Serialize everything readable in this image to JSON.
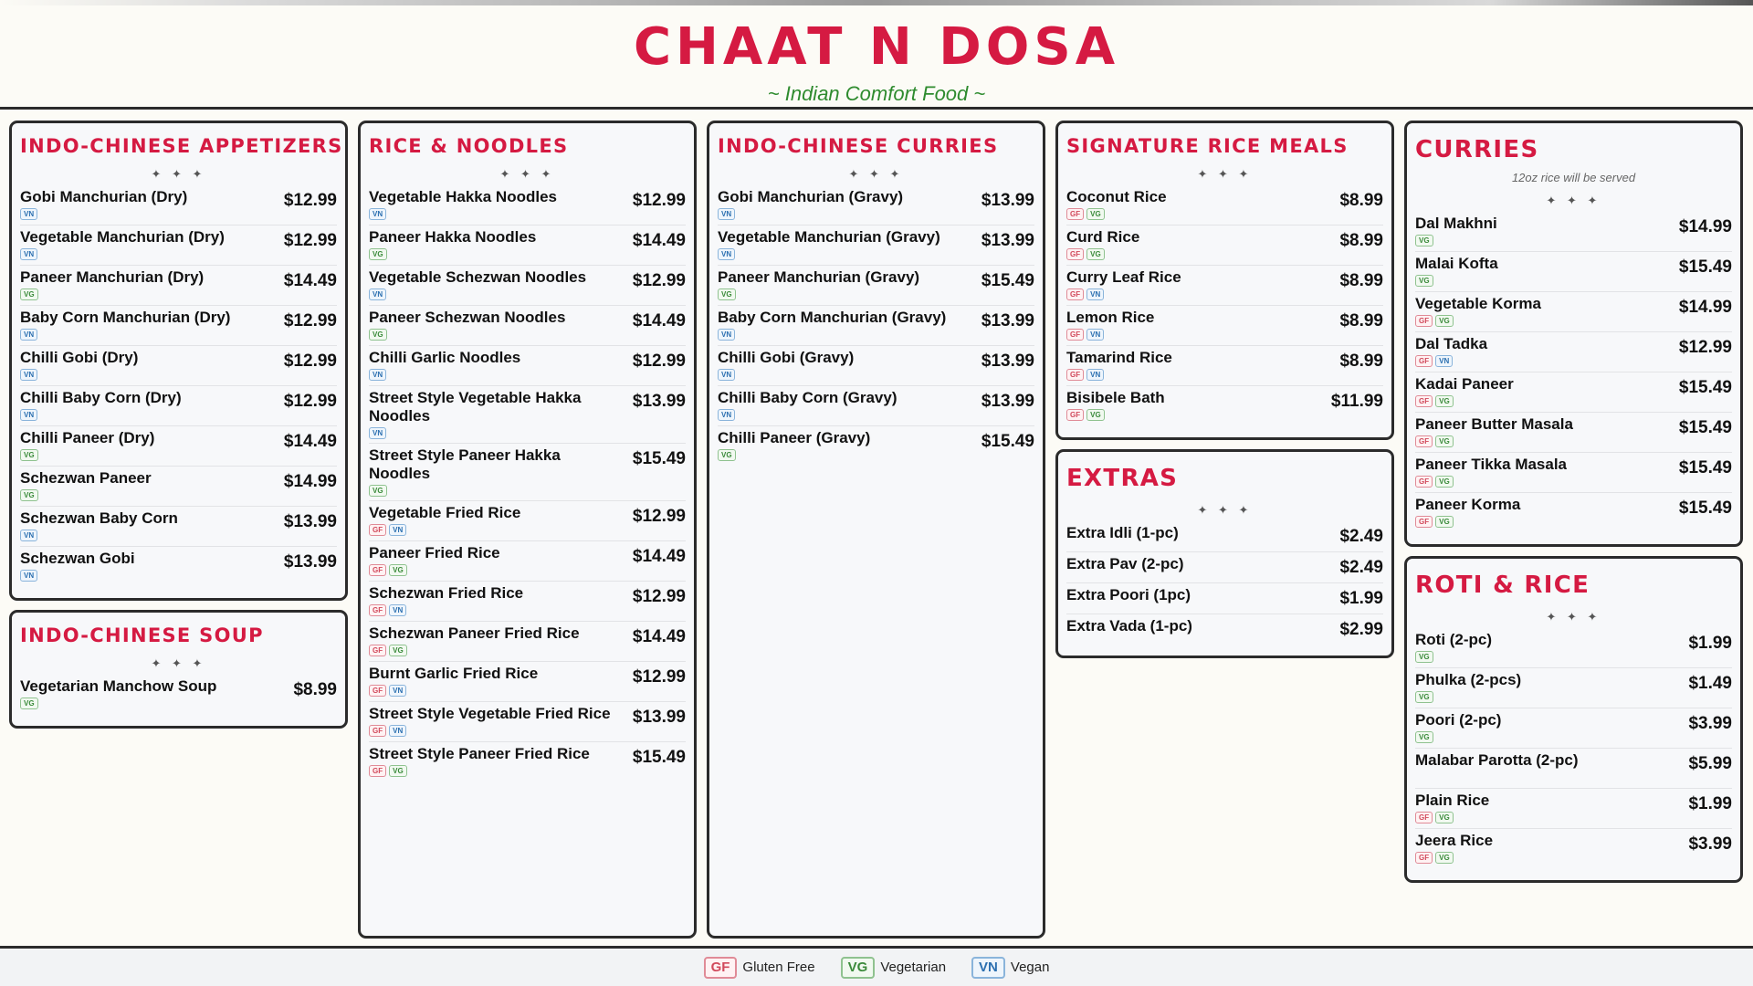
{
  "header": {
    "title": "CHAAT N DOSA",
    "subtitle": "~ Indian Comfort Food ~"
  },
  "stars": "✦ ✦ ✦",
  "sections": {
    "appetizers": {
      "title": "INDO-CHINESE APPETIZERS",
      "items": [
        {
          "name": "Gobi Manchurian (Dry)",
          "price": "$12.99",
          "tags": [
            "VN"
          ]
        },
        {
          "name": "Vegetable Manchurian (Dry)",
          "price": "$12.99",
          "tags": [
            "VN"
          ]
        },
        {
          "name": "Paneer Manchurian (Dry)",
          "price": "$14.49",
          "tags": [
            "VG"
          ]
        },
        {
          "name": "Baby Corn Manchurian (Dry)",
          "price": "$12.99",
          "tags": [
            "VN"
          ]
        },
        {
          "name": "Chilli Gobi (Dry)",
          "price": "$12.99",
          "tags": [
            "VN"
          ]
        },
        {
          "name": "Chilli Baby Corn (Dry)",
          "price": "$12.99",
          "tags": [
            "VN"
          ]
        },
        {
          "name": "Chilli Paneer (Dry)",
          "price": "$14.49",
          "tags": [
            "VG"
          ]
        },
        {
          "name": "Schezwan Paneer",
          "price": "$14.99",
          "tags": [
            "VG"
          ]
        },
        {
          "name": "Schezwan Baby Corn",
          "price": "$13.99",
          "tags": [
            "VN"
          ]
        },
        {
          "name": "Schezwan Gobi",
          "price": "$13.99",
          "tags": [
            "VN"
          ]
        }
      ]
    },
    "soup": {
      "title": "INDO-CHINESE SOUP",
      "items": [
        {
          "name": "Vegetarian Manchow Soup",
          "price": "$8.99",
          "tags": [
            "VG"
          ]
        }
      ]
    },
    "noodles": {
      "title": "RICE & NOODLES",
      "items": [
        {
          "name": "Vegetable Hakka Noodles",
          "price": "$12.99",
          "tags": [
            "VN"
          ]
        },
        {
          "name": "Paneer Hakka Noodles",
          "price": "$14.49",
          "tags": [
            "VG"
          ]
        },
        {
          "name": "Vegetable Schezwan Noodles",
          "price": "$12.99",
          "tags": [
            "VN"
          ]
        },
        {
          "name": "Paneer Schezwan Noodles",
          "price": "$14.49",
          "tags": [
            "VG"
          ]
        },
        {
          "name": "Chilli Garlic Noodles",
          "price": "$12.99",
          "tags": [
            "VN"
          ]
        },
        {
          "name": "Street Style Vegetable Hakka Noodles",
          "price": "$13.99",
          "tags": [
            "VN"
          ]
        },
        {
          "name": "Street Style Paneer Hakka Noodles",
          "price": "$15.49",
          "tags": [
            "VG"
          ]
        },
        {
          "name": "Vegetable Fried Rice",
          "price": "$12.99",
          "tags": [
            "GF",
            "VN"
          ]
        },
        {
          "name": "Paneer Fried Rice",
          "price": "$14.49",
          "tags": [
            "GF",
            "VG"
          ]
        },
        {
          "name": "Schezwan Fried Rice",
          "price": "$12.99",
          "tags": [
            "GF",
            "VN"
          ]
        },
        {
          "name": "Schezwan Paneer Fried Rice",
          "price": "$14.49",
          "tags": [
            "GF",
            "VG"
          ]
        },
        {
          "name": "Burnt Garlic Fried Rice",
          "price": "$12.99",
          "tags": [
            "GF",
            "VN"
          ]
        },
        {
          "name": "Street Style Vegetable Fried Rice",
          "price": "$13.99",
          "tags": [
            "GF",
            "VN"
          ]
        },
        {
          "name": "Street Style Paneer Fried Rice",
          "price": "$15.49",
          "tags": [
            "GF",
            "VG"
          ]
        }
      ]
    },
    "indo_curries": {
      "title": "INDO-CHINESE CURRIES",
      "items": [
        {
          "name": "Gobi Manchurian (Gravy)",
          "price": "$13.99",
          "tags": [
            "VN"
          ]
        },
        {
          "name": "Vegetable Manchurian (Gravy)",
          "price": "$13.99",
          "tags": [
            "VN"
          ]
        },
        {
          "name": "Paneer Manchurian (Gravy)",
          "price": "$15.49",
          "tags": [
            "VG"
          ]
        },
        {
          "name": "Baby Corn Manchurian (Gravy)",
          "price": "$13.99",
          "tags": [
            "VN"
          ]
        },
        {
          "name": "Chilli Gobi (Gravy)",
          "price": "$13.99",
          "tags": [
            "VN"
          ]
        },
        {
          "name": "Chilli Baby Corn (Gravy)",
          "price": "$13.99",
          "tags": [
            "VN"
          ]
        },
        {
          "name": "Chilli Paneer (Gravy)",
          "price": "$15.49",
          "tags": [
            "VG"
          ]
        }
      ]
    },
    "rice_meals": {
      "title": "SIGNATURE RICE MEALS",
      "items": [
        {
          "name": "Coconut Rice",
          "price": "$8.99",
          "tags": [
            "GF",
            "VG"
          ]
        },
        {
          "name": "Curd Rice",
          "price": "$8.99",
          "tags": [
            "GF",
            "VG"
          ]
        },
        {
          "name": "Curry Leaf Rice",
          "price": "$8.99",
          "tags": [
            "GF",
            "VN"
          ]
        },
        {
          "name": "Lemon Rice",
          "price": "$8.99",
          "tags": [
            "GF",
            "VN"
          ]
        },
        {
          "name": "Tamarind Rice",
          "price": "$8.99",
          "tags": [
            "GF",
            "VN"
          ]
        },
        {
          "name": "Bisibele Bath",
          "price": "$11.99",
          "tags": [
            "GF",
            "VG"
          ]
        }
      ]
    },
    "extras": {
      "title": "EXTRAS",
      "items": [
        {
          "name": "Extra Idli (1-pc)",
          "price": "$2.49",
          "tags": []
        },
        {
          "name": "Extra Pav (2-pc)",
          "price": "$2.49",
          "tags": []
        },
        {
          "name": "Extra Poori (1pc)",
          "price": "$1.99",
          "tags": []
        },
        {
          "name": "Extra Vada (1-pc)",
          "price": "$2.99",
          "tags": []
        }
      ]
    },
    "curries": {
      "title": "CURRIES",
      "note": "12oz rice will be served",
      "items": [
        {
          "name": "Dal Makhni",
          "price": "$14.99",
          "tags": [
            "VG"
          ]
        },
        {
          "name": "Malai Kofta",
          "price": "$15.49",
          "tags": [
            "VG"
          ]
        },
        {
          "name": "Vegetable Korma",
          "price": "$14.99",
          "tags": [
            "GF",
            "VG"
          ]
        },
        {
          "name": "Dal Tadka",
          "price": "$12.99",
          "tags": [
            "GF",
            "VN"
          ]
        },
        {
          "name": "Kadai Paneer",
          "price": "$15.49",
          "tags": [
            "GF",
            "VG"
          ]
        },
        {
          "name": "Paneer Butter Masala",
          "price": "$15.49",
          "tags": [
            "GF",
            "VG"
          ]
        },
        {
          "name": "Paneer Tikka Masala",
          "price": "$15.49",
          "tags": [
            "GF",
            "VG"
          ]
        },
        {
          "name": "Paneer Korma",
          "price": "$15.49",
          "tags": [
            "GF",
            "VG"
          ]
        }
      ]
    },
    "roti": {
      "title": "ROTI & RICE",
      "items": [
        {
          "name": "Roti (2-pc)",
          "price": "$1.99",
          "tags": [
            "VG"
          ]
        },
        {
          "name": "Phulka (2-pcs)",
          "price": "$1.49",
          "tags": [
            "VG"
          ]
        },
        {
          "name": "Poori (2-pc)",
          "price": "$3.99",
          "tags": [
            "VG"
          ]
        },
        {
          "name": "Malabar Parotta (2-pc)",
          "price": "$5.99",
          "tags": []
        },
        {
          "name": "Plain Rice",
          "price": "$1.99",
          "tags": [
            "GF",
            "VG"
          ]
        },
        {
          "name": "Jeera Rice",
          "price": "$3.99",
          "tags": [
            "GF",
            "VG"
          ]
        }
      ]
    }
  },
  "legend": [
    {
      "code": "GF",
      "label": "Gluten Free"
    },
    {
      "code": "VG",
      "label": "Vegetarian"
    },
    {
      "code": "VN",
      "label": "Vegan"
    }
  ],
  "colors": {
    "accent": "#d51a42",
    "subtitle": "#2e8b2e",
    "gf": "#d14a5c",
    "vg": "#3a8a3a",
    "vn": "#2b6fb0"
  }
}
